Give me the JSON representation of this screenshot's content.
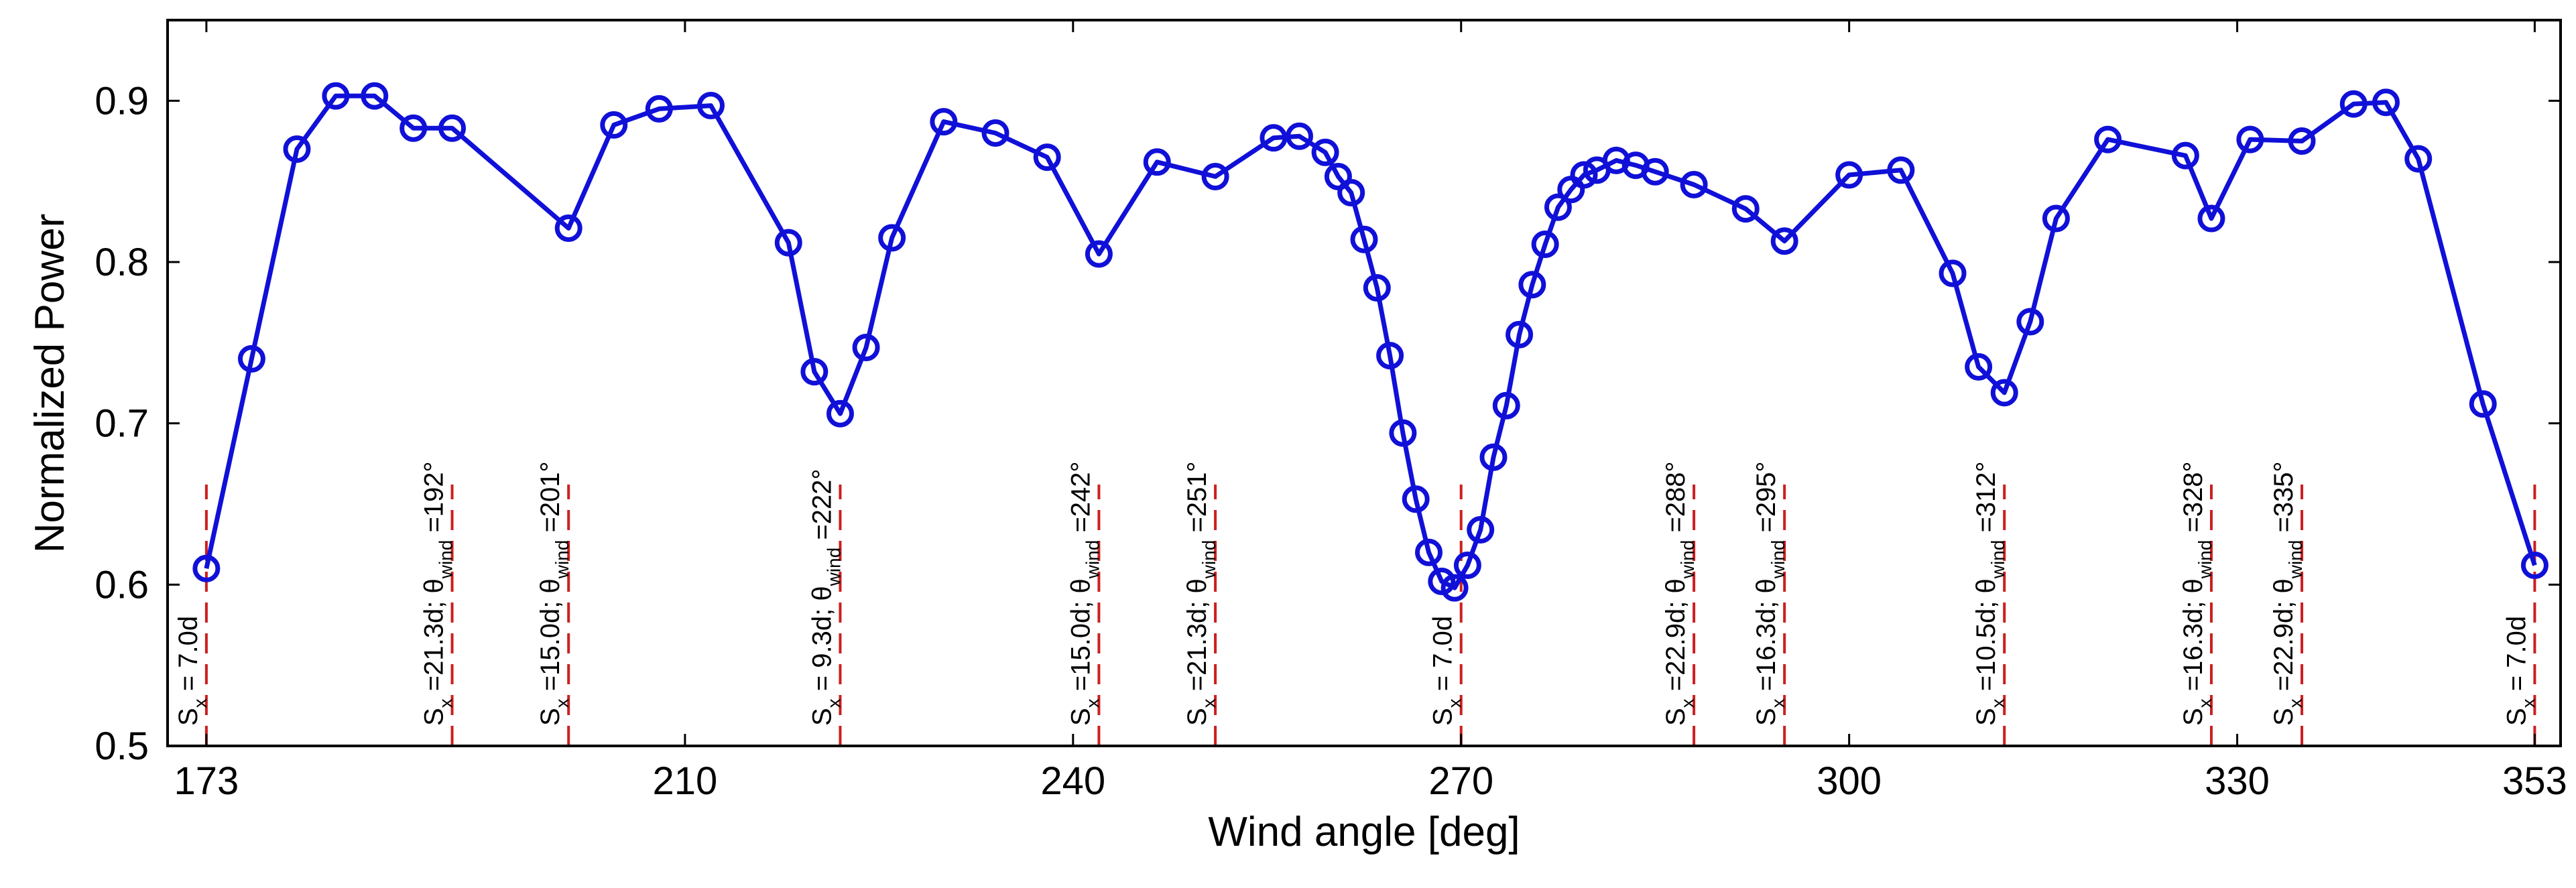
{
  "chart_data": {
    "type": "line",
    "xlabel": "Wind angle [deg]",
    "ylabel": "Normalized Power",
    "xlim": [
      170,
      355
    ],
    "ylim": [
      0.5,
      0.95
    ],
    "xticks": [
      173,
      210,
      240,
      270,
      300,
      330,
      353
    ],
    "yticks": [
      0.5,
      0.6,
      0.7,
      0.8,
      0.9
    ],
    "grid": false,
    "series": [
      {
        "color": "#1010d8",
        "marker": "circle",
        "x": [
          173,
          176.5,
          180,
          183,
          186,
          189,
          192,
          201,
          204.5,
          208,
          212,
          218,
          220,
          222,
          224,
          226,
          230,
          234,
          238,
          242,
          246.5,
          251,
          255.5,
          257.5,
          259.5,
          260.5,
          261.5,
          262.5,
          263.5,
          264.5,
          265.5,
          266.5,
          267.5,
          268.5,
          269.5,
          270.5,
          271.5,
          272.5,
          273.5,
          274.5,
          275.5,
          276.5,
          277.5,
          278.5,
          279.5,
          280.5,
          282,
          283.5,
          285,
          288,
          292,
          295,
          300,
          304,
          308,
          310,
          312,
          314,
          316,
          320,
          326,
          328,
          331,
          335,
          339,
          341.5,
          344,
          349,
          353
        ],
        "y": [
          0.61,
          0.74,
          0.87,
          0.903,
          0.903,
          0.883,
          0.883,
          0.821,
          0.885,
          0.895,
          0.897,
          0.812,
          0.732,
          0.706,
          0.747,
          0.815,
          0.887,
          0.88,
          0.865,
          0.805,
          0.862,
          0.853,
          0.877,
          0.878,
          0.868,
          0.853,
          0.843,
          0.814,
          0.784,
          0.742,
          0.694,
          0.653,
          0.62,
          0.602,
          0.598,
          0.612,
          0.634,
          0.679,
          0.711,
          0.755,
          0.786,
          0.811,
          0.834,
          0.845,
          0.854,
          0.857,
          0.863,
          0.86,
          0.856,
          0.848,
          0.833,
          0.813,
          0.854,
          0.857,
          0.793,
          0.735,
          0.719,
          0.763,
          0.827,
          0.876,
          0.866,
          0.827,
          0.876,
          0.875,
          0.898,
          0.899,
          0.864,
          0.712,
          0.612
        ]
      }
    ],
    "annotations": [
      {
        "x": 173,
        "line_color": "#cc1f1f",
        "parts": [
          "S",
          "x",
          " = 7.0d"
        ]
      },
      {
        "x": 192,
        "line_color": "#cc1f1f",
        "parts": [
          "S",
          "x",
          " =21.3d; θ",
          "wind",
          " =192°"
        ]
      },
      {
        "x": 201,
        "line_color": "#cc1f1f",
        "parts": [
          "S",
          "x",
          " =15.0d; θ",
          "wind",
          " =201°"
        ]
      },
      {
        "x": 222,
        "line_color": "#cc1f1f",
        "parts": [
          "S",
          "x",
          " = 9.3d; θ",
          "wind",
          " =222°"
        ]
      },
      {
        "x": 242,
        "line_color": "#cc1f1f",
        "parts": [
          "S",
          "x",
          " =15.0d; θ",
          "wind",
          " =242°"
        ]
      },
      {
        "x": 251,
        "line_color": "#cc1f1f",
        "parts": [
          "S",
          "x",
          " =21.3d; θ",
          "wind",
          " =251°"
        ]
      },
      {
        "x": 270,
        "line_color": "#cc1f1f",
        "parts": [
          "S",
          "x",
          " = 7.0d"
        ]
      },
      {
        "x": 288,
        "line_color": "#cc1f1f",
        "parts": [
          "S",
          "x",
          " =22.9d; θ",
          "wind",
          " =288°"
        ]
      },
      {
        "x": 295,
        "line_color": "#cc1f1f",
        "parts": [
          "S",
          "x",
          " =16.3d; θ",
          "wind",
          " =295°"
        ]
      },
      {
        "x": 312,
        "line_color": "#cc1f1f",
        "parts": [
          "S",
          "x",
          " =10.5d; θ",
          "wind",
          " =312°"
        ]
      },
      {
        "x": 328,
        "line_color": "#cc1f1f",
        "parts": [
          "S",
          "x",
          " =16.3d; θ",
          "wind",
          " =328°"
        ]
      },
      {
        "x": 335,
        "line_color": "#cc1f1f",
        "parts": [
          "S",
          "x",
          " =22.9d; θ",
          "wind",
          " =335°"
        ]
      },
      {
        "x": 353,
        "line_color": "#cc1f1f",
        "parts": [
          "S",
          "x",
          " = 7.0d"
        ]
      }
    ]
  }
}
